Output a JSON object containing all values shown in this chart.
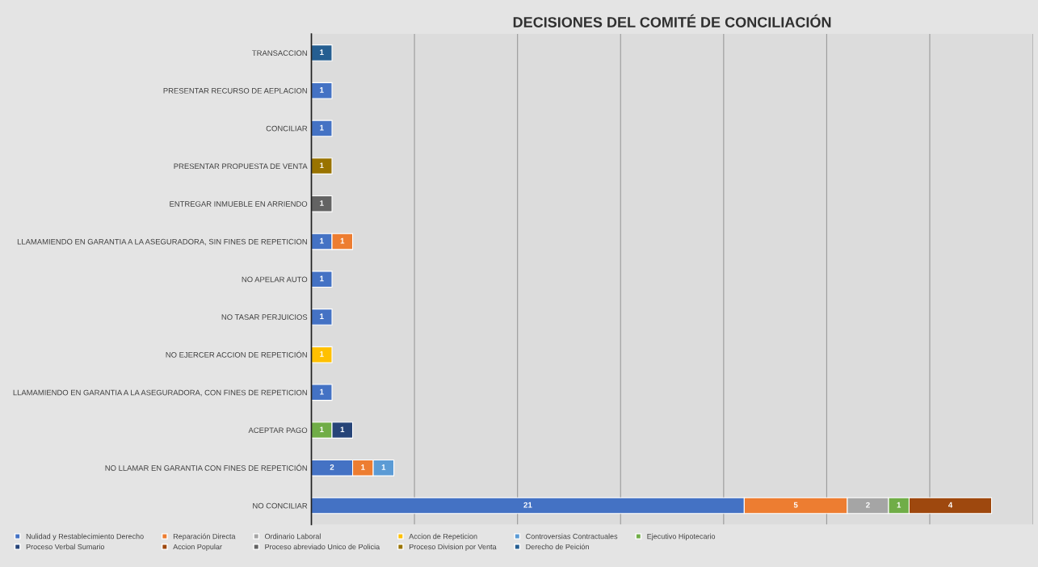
{
  "chart_data": {
    "type": "bar",
    "orientation": "horizontal",
    "stacked": true,
    "title": "DECISIONES DEL COMITÉ DE CONCILIACIÓN",
    "categories": [
      "TRANSACCION",
      "PRESENTAR RECURSO DE AEPLACION",
      "CONCILIAR",
      "PRESENTAR PROPUESTA DE VENTA",
      "ENTREGAR INMUEBLE EN ARRIENDO",
      "LLAMAMIENDO EN GARANTIA A LA ASEGURADORA, SIN FINES DE REPETICION",
      "NO APELAR AUTO",
      "NO TASAR PERJUICIOS",
      "NO EJERCER ACCION DE REPETICIÓN",
      "LLAMAMIENDO EN GARANTIA A LA ASEGURADORA, CON FINES DE REPETICION",
      "ACEPTAR PAGO",
      "NO LLAMAR EN GARANTIA CON FINES DE REPETICIÓN",
      "NO CONCILIAR"
    ],
    "series": [
      {
        "name": "Nulidad y Restablecimiento Derecho",
        "color": "#4472c4",
        "values": [
          null,
          1,
          1,
          null,
          null,
          1,
          1,
          1,
          null,
          1,
          null,
          2,
          21
        ]
      },
      {
        "name": "Reparación Directa",
        "color": "#ed7d31",
        "values": [
          null,
          null,
          null,
          null,
          null,
          1,
          null,
          null,
          null,
          null,
          null,
          1,
          5
        ]
      },
      {
        "name": "Ordinario Laboral",
        "color": "#a5a5a5",
        "values": [
          null,
          null,
          null,
          null,
          null,
          null,
          null,
          null,
          null,
          null,
          null,
          null,
          2
        ]
      },
      {
        "name": "Accion de Repeticion",
        "color": "#ffc000",
        "values": [
          null,
          null,
          null,
          null,
          null,
          null,
          null,
          null,
          1,
          null,
          null,
          null,
          null
        ]
      },
      {
        "name": "Controversias Contractuales",
        "color": "#5b9bd5",
        "values": [
          null,
          null,
          null,
          null,
          null,
          null,
          null,
          null,
          null,
          null,
          null,
          1,
          null
        ]
      },
      {
        "name": "Ejecutivo Hipotecario",
        "color": "#70ad47",
        "values": [
          null,
          null,
          null,
          null,
          null,
          null,
          null,
          null,
          null,
          null,
          1,
          null,
          1
        ]
      },
      {
        "name": "Proceso Verbal Sumario",
        "color": "#264478",
        "values": [
          null,
          null,
          null,
          null,
          null,
          null,
          null,
          null,
          null,
          null,
          1,
          null,
          null
        ]
      },
      {
        "name": "Accion Popular",
        "color": "#9e480e",
        "values": [
          null,
          null,
          null,
          null,
          null,
          null,
          null,
          null,
          null,
          null,
          null,
          null,
          4
        ]
      },
      {
        "name": "Proceso abreviado Unico de Policia",
        "color": "#636363",
        "values": [
          null,
          null,
          null,
          null,
          1,
          null,
          null,
          null,
          null,
          null,
          null,
          null,
          null
        ]
      },
      {
        "name": "Proceso Division por Venta",
        "color": "#997300",
        "values": [
          null,
          null,
          null,
          1,
          null,
          null,
          null,
          null,
          null,
          null,
          null,
          null,
          null
        ]
      },
      {
        "name": "Derecho de Peición",
        "color": "#255e91",
        "values": [
          1,
          null,
          null,
          null,
          null,
          null,
          null,
          null,
          null,
          null,
          null,
          null,
          null
        ]
      }
    ],
    "xlim": [
      0,
      35
    ],
    "xticks": [
      {
        "value": 0,
        "label": null
      },
      {
        "value": 5,
        "label": null
      },
      {
        "value": 10,
        "label": null
      },
      {
        "value": 15,
        "label": null
      },
      {
        "value": 20,
        "label": null
      },
      {
        "value": 25,
        "label": null
      },
      {
        "value": 30,
        "label": null
      },
      {
        "value": 35,
        "label": null
      }
    ],
    "tick_labels": "y",
    "grid": "x",
    "data_labels": true,
    "legend": "bottom"
  }
}
